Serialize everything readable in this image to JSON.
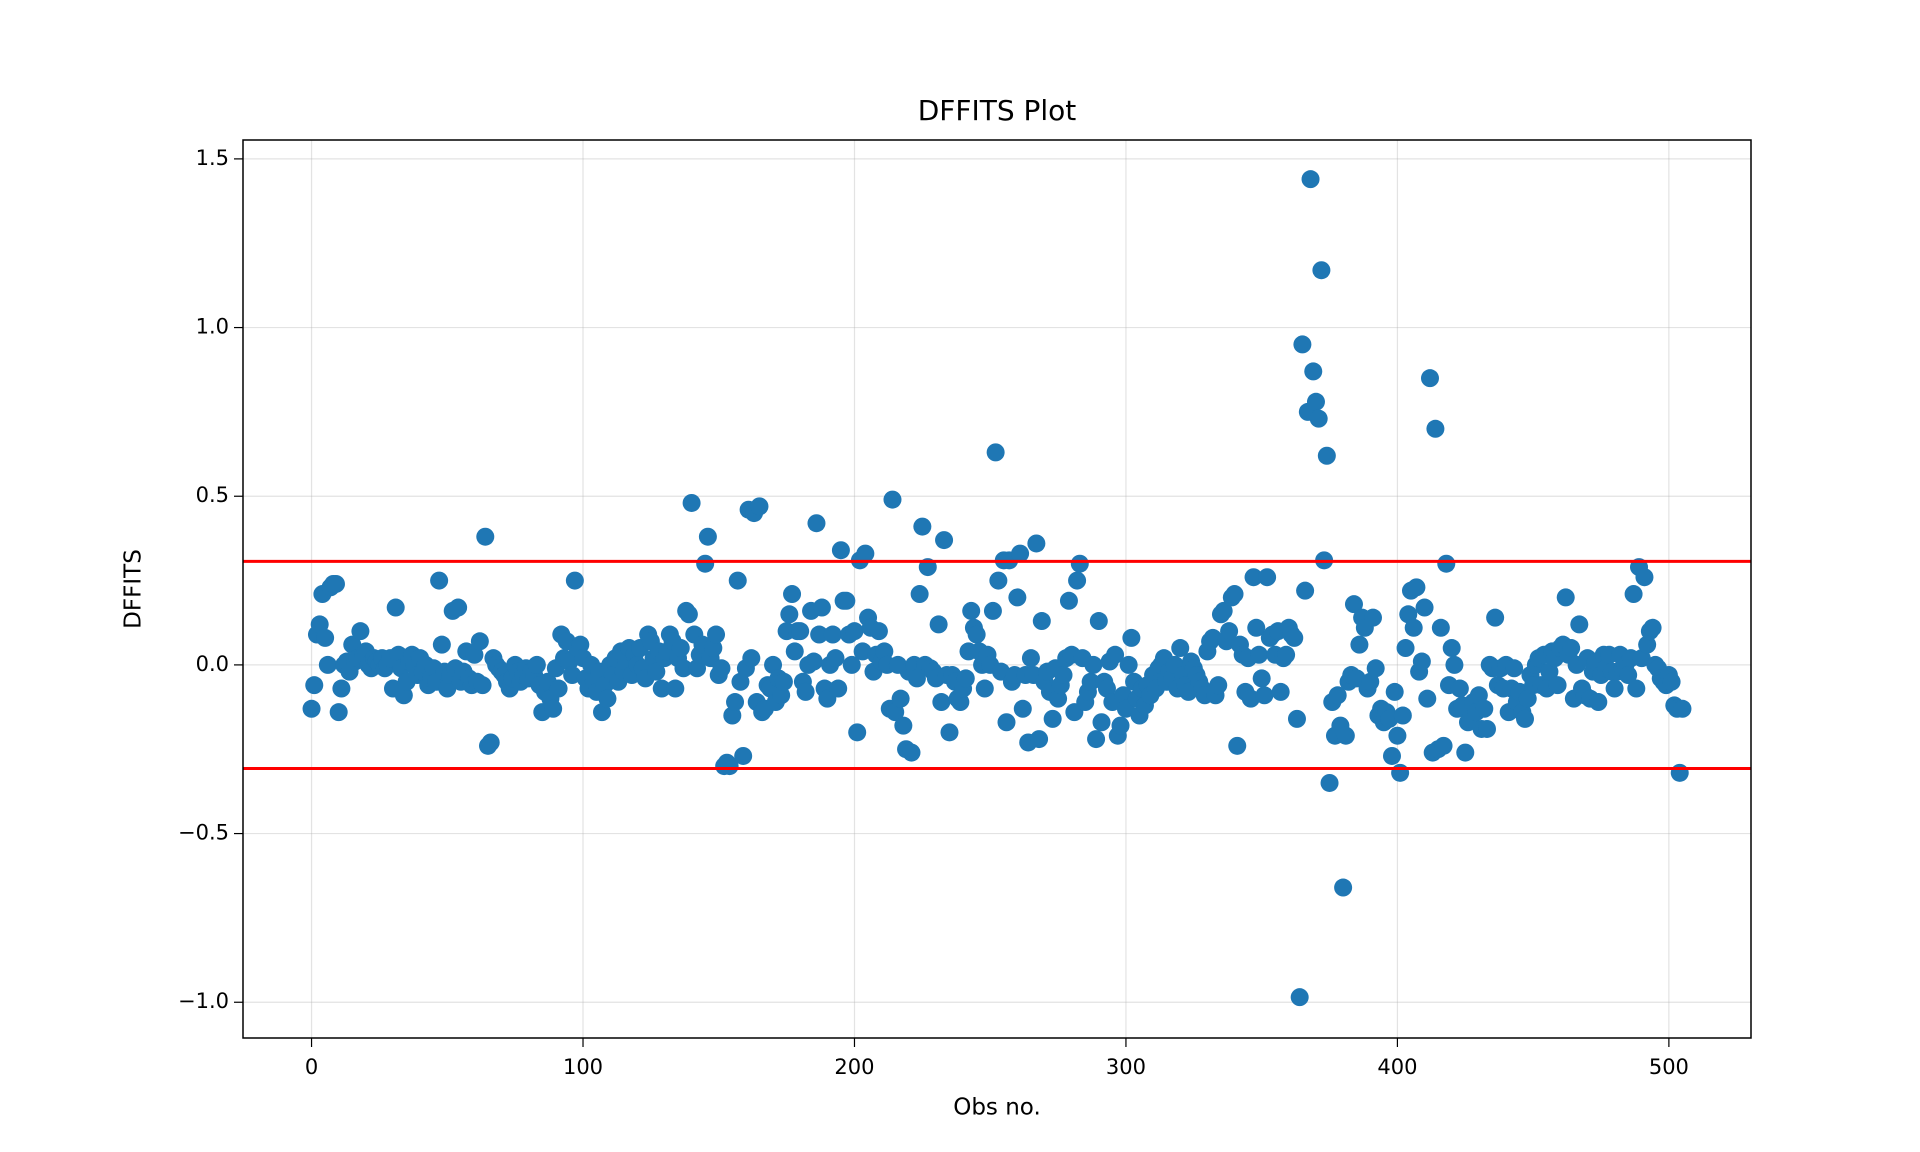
{
  "chart_data": {
    "type": "scatter",
    "title": "DFFITS Plot",
    "x_label": "Obs no.",
    "y_label": "DFFITS",
    "color": "#1f77b4",
    "grid": true,
    "xlim": [
      -25.25,
      530.25
    ],
    "ylim": [
      -1.106,
      1.556
    ],
    "xticks": [
      0,
      100,
      200,
      300,
      400,
      500
    ],
    "yticks": [
      {
        "value": -1,
        "label": "−1.0"
      },
      {
        "value": -0.5,
        "label": "−0.5"
      },
      {
        "value": 0,
        "label": "0.0"
      },
      0.5,
      {
        "value": 1,
        "label": "1.0"
      },
      1.5
    ],
    "hlines": [
      0.307,
      -0.307
    ],
    "hline_color": "#ff0000",
    "x": [
      0,
      1,
      2,
      3,
      4,
      5,
      6,
      7,
      8,
      9,
      10,
      11,
      12,
      13,
      14,
      15,
      16,
      17,
      18,
      19,
      20,
      21,
      22,
      23,
      24,
      25,
      26,
      27,
      28,
      29,
      30,
      31,
      32,
      33,
      34,
      35,
      36,
      37,
      38,
      39,
      40,
      41,
      42,
      43,
      44,
      45,
      46,
      47,
      48,
      49,
      50,
      51,
      52,
      53,
      54,
      55,
      56,
      57,
      58,
      59,
      60,
      61,
      62,
      63,
      64,
      65,
      66,
      67,
      68,
      69,
      70,
      71,
      72,
      73,
      74,
      75,
      76,
      77,
      78,
      79,
      80,
      81,
      82,
      83,
      84,
      85,
      86,
      87,
      88,
      89,
      90,
      91,
      92,
      93,
      94,
      95,
      96,
      97,
      98,
      99,
      100,
      101,
      102,
      103,
      104,
      105,
      106,
      107,
      108,
      109,
      110,
      111,
      112,
      113,
      114,
      115,
      116,
      117,
      118,
      119,
      120,
      121,
      122,
      123,
      124,
      125,
      126,
      127,
      128,
      129,
      130,
      131,
      132,
      133,
      134,
      135,
      136,
      137,
      138,
      139,
      140,
      141,
      142,
      143,
      144,
      145,
      146,
      147,
      148,
      149,
      150,
      151,
      152,
      153,
      154,
      155,
      156,
      157,
      158,
      159,
      160,
      161,
      162,
      163,
      164,
      165,
      166,
      167,
      168,
      169,
      170,
      171,
      172,
      173,
      174,
      175,
      176,
      177,
      178,
      179,
      180,
      181,
      182,
      183,
      184,
      185,
      186,
      187,
      188,
      189,
      190,
      191,
      192,
      193,
      194,
      195,
      196,
      197,
      198,
      199,
      200,
      201,
      202,
      203,
      204,
      205,
      206,
      207,
      208,
      209,
      210,
      211,
      212,
      213,
      214,
      215,
      216,
      217,
      218,
      219,
      220,
      221,
      222,
      223,
      224,
      225,
      226,
      227,
      228,
      229,
      230,
      231,
      232,
      233,
      234,
      235,
      236,
      237,
      238,
      239,
      240,
      241,
      242,
      243,
      244,
      245,
      246,
      247,
      248,
      249,
      250,
      251,
      252,
      253,
      254,
      255,
      256,
      257,
      258,
      259,
      260,
      261,
      262,
      263,
      264,
      265,
      266,
      267,
      268,
      269,
      270,
      271,
      272,
      273,
      274,
      275,
      276,
      277,
      278,
      279,
      280,
      281,
      282,
      283,
      284,
      285,
      286,
      287,
      288,
      289,
      290,
      291,
      292,
      293,
      294,
      295,
      296,
      297,
      298,
      299,
      300,
      301,
      302,
      303,
      304,
      305,
      306,
      307,
      308,
      309,
      310,
      311,
      312,
      313,
      314,
      315,
      316,
      317,
      318,
      319,
      320,
      321,
      322,
      323,
      324,
      325,
      326,
      327,
      328,
      329,
      330,
      331,
      332,
      333,
      334,
      335,
      336,
      337,
      338,
      339,
      340,
      341,
      342,
      343,
      344,
      345,
      346,
      347,
      348,
      349,
      350,
      351,
      352,
      353,
      354,
      355,
      356,
      357,
      358,
      359,
      360,
      361,
      362,
      363,
      364,
      365,
      366,
      367,
      368,
      369,
      370,
      371,
      372,
      373,
      374,
      375,
      376,
      377,
      378,
      379,
      380,
      381,
      382,
      383,
      384,
      385,
      386,
      387,
      388,
      389,
      390,
      391,
      392,
      393,
      394,
      395,
      396,
      397,
      398,
      399,
      400,
      401,
      402,
      403,
      404,
      405,
      406,
      407,
      408,
      409,
      410,
      411,
      412,
      413,
      414,
      415,
      416,
      417,
      418,
      419,
      420,
      421,
      422,
      423,
      424,
      425,
      426,
      427,
      428,
      429,
      430,
      431,
      432,
      433,
      434,
      435,
      436,
      437,
      438,
      439,
      440,
      441,
      442,
      443,
      444,
      445,
      446,
      447,
      448,
      449,
      450,
      451,
      452,
      453,
      454,
      455,
      456,
      457,
      458,
      459,
      460,
      461,
      462,
      463,
      464,
      465,
      466,
      467,
      468,
      469,
      470,
      471,
      472,
      473,
      474,
      475,
      476,
      477,
      478,
      479,
      480,
      481,
      482,
      483,
      484,
      485,
      486,
      487,
      488,
      489,
      490,
      491,
      492,
      493,
      494,
      495,
      496,
      497,
      498,
      499,
      500,
      501,
      502,
      503,
      504,
      505
    ],
    "values": [
      -0.13,
      -0.06,
      0.09,
      0.12,
      0.21,
      0.08,
      0.0,
      0.23,
      0.24,
      0.24,
      -0.14,
      -0.07,
      0.0,
      0.01,
      -0.02,
      0.06,
      0.01,
      0.02,
      0.1,
      0.03,
      0.04,
      0.0,
      -0.01,
      0.02,
      0.01,
      0.0,
      0.02,
      -0.01,
      0.0,
      0.02,
      -0.07,
      0.17,
      0.03,
      -0.01,
      -0.09,
      -0.05,
      0.01,
      0.03,
      0.0,
      -0.03,
      0.02,
      -0.02,
      0.0,
      -0.06,
      -0.04,
      -0.01,
      -0.05,
      0.25,
      0.06,
      -0.02,
      -0.07,
      -0.03,
      0.16,
      -0.01,
      0.17,
      -0.05,
      -0.02,
      0.04,
      -0.04,
      -0.06,
      0.03,
      -0.05,
      0.07,
      -0.06,
      0.38,
      -0.24,
      -0.23,
      0.02,
      0.0,
      -0.01,
      -0.02,
      -0.03,
      -0.05,
      -0.07,
      -0.04,
      0.0,
      -0.02,
      -0.05,
      -0.03,
      -0.01,
      -0.04,
      -0.02,
      -0.03,
      0.0,
      -0.06,
      -0.14,
      -0.08,
      -0.05,
      -0.1,
      -0.13,
      -0.01,
      -0.07,
      0.09,
      0.02,
      0.07,
      0.01,
      -0.03,
      0.25,
      0.05,
      0.06,
      0.02,
      -0.04,
      -0.07,
      0.0,
      -0.05,
      -0.08,
      -0.02,
      -0.14,
      -0.06,
      -0.1,
      0.0,
      -0.03,
      0.02,
      -0.05,
      0.04,
      -0.02,
      0.01,
      0.05,
      -0.03,
      0.03,
      0.0,
      0.05,
      -0.01,
      -0.04,
      0.09,
      0.07,
      0.02,
      -0.02,
      0.04,
      -0.07,
      0.02,
      0.04,
      0.09,
      0.07,
      -0.07,
      0.02,
      0.05,
      -0.01,
      0.16,
      0.15,
      0.48,
      0.09,
      -0.01,
      0.03,
      0.06,
      0.3,
      0.38,
      0.02,
      0.05,
      0.09,
      -0.03,
      -0.01,
      -0.3,
      -0.29,
      -0.3,
      -0.15,
      -0.11,
      0.25,
      -0.05,
      -0.27,
      -0.01,
      0.46,
      0.02,
      0.45,
      -0.11,
      0.47,
      -0.14,
      -0.13,
      -0.06,
      -0.07,
      0.0,
      -0.11,
      -0.04,
      -0.09,
      -0.05,
      0.1,
      0.15,
      0.21,
      0.04,
      0.1,
      0.1,
      -0.05,
      -0.08,
      0.0,
      0.16,
      0.01,
      0.42,
      0.09,
      0.17,
      -0.07,
      -0.1,
      0.0,
      0.09,
      0.02,
      -0.07,
      0.34,
      0.19,
      0.19,
      0.09,
      0.0,
      0.1,
      -0.2,
      0.31,
      0.04,
      0.33,
      0.14,
      0.11,
      -0.02,
      0.03,
      0.1,
      0.01,
      0.04,
      0.0,
      -0.13,
      0.49,
      -0.14,
      0.0,
      -0.1,
      -0.18,
      -0.25,
      -0.02,
      -0.26,
      0.0,
      -0.04,
      0.21,
      0.41,
      0.0,
      0.29,
      -0.01,
      -0.02,
      -0.04,
      0.12,
      -0.11,
      0.37,
      -0.03,
      -0.2,
      -0.03,
      -0.05,
      -0.1,
      -0.11,
      -0.07,
      -0.04,
      0.04,
      0.16,
      0.11,
      0.09,
      0.04,
      0.0,
      -0.07,
      0.03,
      0.0,
      0.16,
      0.63,
      0.25,
      -0.02,
      0.31,
      -0.17,
      0.31,
      -0.05,
      -0.03,
      0.2,
      0.33,
      -0.13,
      -0.03,
      -0.23,
      0.02,
      -0.03,
      0.36,
      -0.22,
      0.13,
      -0.05,
      -0.02,
      -0.08,
      -0.16,
      -0.01,
      -0.1,
      -0.06,
      -0.03,
      0.02,
      0.19,
      0.03,
      -0.14,
      0.25,
      0.3,
      0.02,
      -0.11,
      -0.08,
      -0.05,
      0.0,
      -0.22,
      0.13,
      -0.17,
      -0.05,
      -0.07,
      0.01,
      -0.11,
      0.03,
      -0.21,
      -0.18,
      -0.09,
      -0.13,
      0.0,
      0.08,
      -0.05,
      -0.1,
      -0.15,
      -0.07,
      -0.12,
      -0.06,
      -0.09,
      -0.03,
      -0.07,
      -0.01,
      0.0,
      0.02,
      -0.05,
      -0.02,
      -0.04,
      0.0,
      -0.07,
      0.05,
      -0.03,
      -0.06,
      -0.08,
      0.01,
      -0.01,
      -0.03,
      -0.05,
      -0.07,
      -0.09,
      0.04,
      0.07,
      0.08,
      -0.09,
      -0.06,
      0.15,
      0.16,
      0.07,
      0.1,
      0.2,
      0.21,
      -0.24,
      0.06,
      0.03,
      -0.08,
      0.02,
      -0.1,
      0.26,
      0.11,
      0.03,
      -0.04,
      -0.09,
      0.26,
      0.08,
      0.09,
      0.03,
      0.1,
      -0.08,
      0.02,
      0.03,
      0.11,
      0.09,
      0.08,
      -0.16,
      -0.985,
      0.95,
      0.22,
      0.75,
      1.44,
      0.87,
      0.78,
      0.73,
      1.17,
      0.31,
      0.62,
      -0.35,
      -0.11,
      -0.21,
      -0.09,
      -0.18,
      -0.66,
      -0.21,
      -0.05,
      -0.03,
      0.18,
      -0.04,
      0.06,
      0.14,
      0.11,
      -0.07,
      -0.05,
      0.14,
      -0.01,
      -0.15,
      -0.13,
      -0.17,
      -0.14,
      -0.16,
      -0.27,
      -0.08,
      -0.21,
      -0.32,
      -0.15,
      0.05,
      0.15,
      0.22,
      0.11,
      0.23,
      -0.02,
      0.01,
      0.17,
      -0.1,
      0.85,
      -0.26,
      0.7,
      -0.25,
      0.11,
      -0.24,
      0.3,
      -0.06,
      0.05,
      0.0,
      -0.13,
      -0.07,
      -0.12,
      -0.26,
      -0.17,
      -0.16,
      -0.11,
      -0.14,
      -0.09,
      -0.19,
      -0.13,
      -0.19,
      0.0,
      -0.01,
      0.14,
      -0.06,
      -0.01,
      -0.07,
      0.0,
      -0.14,
      -0.07,
      -0.01,
      -0.11,
      -0.08,
      -0.14,
      -0.16,
      -0.1,
      -0.03,
      -0.06,
      0.0,
      0.02,
      -0.06,
      0.03,
      -0.07,
      -0.02,
      0.04,
      0.02,
      -0.06,
      0.05,
      0.06,
      0.2,
      0.03,
      0.05,
      -0.1,
      0.0,
      0.12,
      -0.07,
      -0.09,
      0.02,
      -0.1,
      -0.02,
      0.01,
      -0.11,
      -0.03,
      0.03,
      -0.01,
      0.03,
      -0.02,
      -0.07,
      -0.02,
      0.03,
      -0.01,
      0.0,
      -0.03,
      0.02,
      0.21,
      -0.07,
      0.29,
      0.02,
      0.26,
      0.06,
      0.1,
      0.11,
      0.0,
      -0.01,
      -0.04,
      -0.05,
      -0.06,
      -0.03,
      -0.05,
      -0.12,
      -0.13,
      -0.32,
      -0.13
    ]
  }
}
